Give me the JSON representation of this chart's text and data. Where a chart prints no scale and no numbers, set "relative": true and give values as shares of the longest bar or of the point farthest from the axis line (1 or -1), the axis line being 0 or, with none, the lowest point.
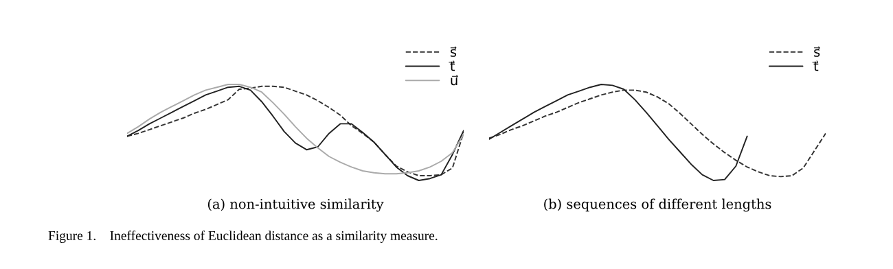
{
  "chart_data": [
    {
      "type": "line",
      "relative": true,
      "xlabel": "(a) non-intuitive similarity",
      "legend": "top right",
      "tick_labels": false,
      "categories": [
        null,
        null,
        null,
        null,
        null,
        null,
        null,
        null,
        null,
        null,
        null,
        null,
        null,
        null,
        null,
        null,
        null,
        null,
        null,
        null,
        null,
        null,
        null,
        null,
        null,
        null,
        null,
        null,
        null,
        null,
        null
      ],
      "series": [
        {
          "name": "s⃗",
          "color": "#333333",
          "line_style": "dashed",
          "values": [
            0.46,
            0.49,
            0.53,
            0.57,
            0.61,
            0.65,
            0.7,
            0.74,
            0.79,
            0.84,
            0.95,
            0.96,
            0.98,
            0.98,
            0.97,
            0.93,
            0.89,
            0.83,
            0.76,
            0.68,
            0.57,
            0.49,
            0.4,
            0.27,
            0.15,
            0.09,
            0.05,
            0.05,
            0.06,
            0.13,
            0.5
          ]
        },
        {
          "name": "t⃗",
          "color": "#222222",
          "line_style": "solid",
          "values": [
            0.46,
            0.52,
            0.59,
            0.65,
            0.71,
            0.77,
            0.83,
            0.89,
            0.93,
            0.97,
            0.98,
            0.94,
            0.82,
            0.67,
            0.51,
            0.39,
            0.32,
            0.35,
            0.49,
            0.59,
            0.59,
            0.5,
            0.4,
            0.27,
            0.14,
            0.05,
            0.0,
            0.02,
            0.06,
            0.27,
            0.52
          ]
        },
        {
          "name": "u⃗",
          "color": "#aaaaaa",
          "line_style": "solid",
          "values": [
            0.49,
            0.56,
            0.64,
            0.71,
            0.77,
            0.83,
            0.89,
            0.94,
            0.97,
            1.0,
            1.0,
            0.97,
            0.92,
            0.81,
            0.69,
            0.56,
            0.44,
            0.34,
            0.25,
            0.19,
            0.14,
            0.1,
            0.08,
            0.07,
            0.07,
            0.08,
            0.1,
            0.14,
            0.2,
            0.29,
            0.48
          ]
        }
      ],
      "annotations": [
        "Figure 1.    Ineffectiveness of Euclidean distance as a similarity measure."
      ]
    },
    {
      "type": "line",
      "relative": true,
      "xlabel": "(b) sequences of different lengths",
      "legend": "top right",
      "tick_labels": false,
      "categories": [
        null,
        null,
        null,
        null,
        null,
        null,
        null,
        null,
        null,
        null,
        null,
        null,
        null,
        null,
        null,
        null,
        null,
        null,
        null,
        null,
        null,
        null,
        null,
        null,
        null,
        null,
        null,
        null,
        null,
        null,
        null
      ],
      "series": [
        {
          "name": "s⃗",
          "color": "#333333",
          "line_style": "dashed",
          "values": [
            0.44,
            0.48,
            0.53,
            0.57,
            0.62,
            0.67,
            0.71,
            0.76,
            0.81,
            0.85,
            0.89,
            0.92,
            0.94,
            0.94,
            0.92,
            0.87,
            0.8,
            0.7,
            0.59,
            0.48,
            0.38,
            0.29,
            0.21,
            0.14,
            0.09,
            0.05,
            0.04,
            0.05,
            0.13,
            0.31,
            0.49
          ]
        },
        {
          "name": "t⃗",
          "color": "#222222",
          "line_style": "solid",
          "values": [
            0.43,
            0.5,
            0.57,
            0.64,
            0.71,
            0.77,
            0.83,
            0.89,
            0.93,
            0.97,
            1.0,
            0.99,
            0.95,
            0.84,
            0.71,
            0.57,
            0.43,
            0.3,
            0.17,
            0.06,
            0.0,
            0.01,
            0.15,
            0.46,
            null,
            null,
            null,
            null,
            null,
            null,
            null
          ]
        }
      ]
    }
  ]
}
